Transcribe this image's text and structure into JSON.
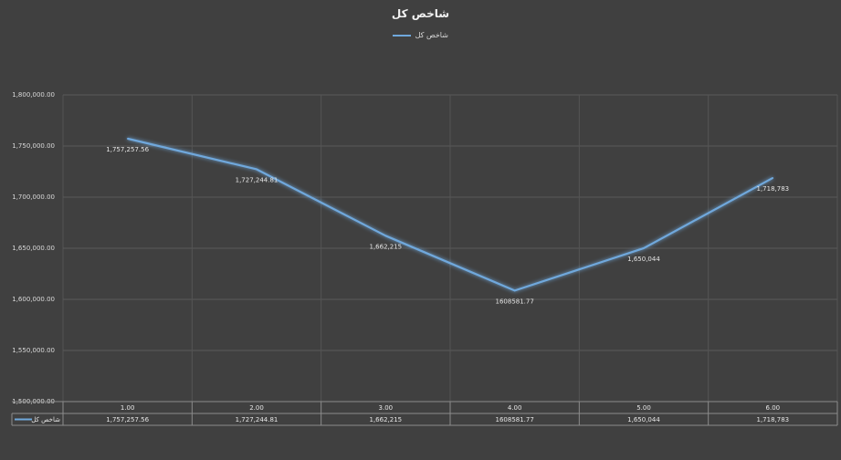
{
  "chart_data": {
    "type": "line",
    "title": "شاخص کل",
    "xlabel": "",
    "ylabel": "",
    "ylim": [
      1500000,
      1800000
    ],
    "yticks": [
      "1,800,000.00",
      "1,750,000.00",
      "1,700,000.00",
      "1,650,000.00",
      "1,600,000.00",
      "1,550,000.00",
      "1,500,000.00"
    ],
    "ytick_values": [
      1800000,
      1750000,
      1700000,
      1650000,
      1600000,
      1550000,
      1500000
    ],
    "categories": [
      "1.00",
      "2.00",
      "3.00",
      "4.00",
      "5.00",
      "6.00"
    ],
    "legend_position": "top",
    "grid": true,
    "series": [
      {
        "name": "شاخص کل",
        "color": "#6fa8dc",
        "values": [
          1757257.56,
          1727244.81,
          1662215,
          1608581.77,
          1650044,
          1718783
        ],
        "labels": [
          "1,757,257.56",
          "1,727,244.81",
          "1,662,215",
          "1608581.77",
          "1,650,044",
          "1,718,783"
        ]
      }
    ]
  }
}
